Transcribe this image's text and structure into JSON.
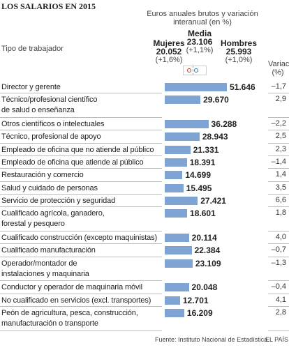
{
  "chart_data": {
    "type": "bar",
    "orientation": "horizontal",
    "title": "LOS SALARIOS EN 2015",
    "subtitle": "Euros anuales brutos y variación interanual (en %)",
    "category_header": "Tipo de trabajador",
    "change_header": "Variac. (%)",
    "color": "#7fa3d3",
    "references": [
      {
        "name": "Mujeres",
        "value": 20052,
        "value_label": "20.052",
        "change": 1.6,
        "change_label": "(+1,6%)",
        "color": "#c0392b"
      },
      {
        "name": "Media",
        "value": 23106,
        "value_label": "23.106",
        "change": 1.1,
        "change_label": "(+1,1%)",
        "color": "#999999"
      },
      {
        "name": "Hombres",
        "value": 25993,
        "value_label": "25.993",
        "change": 1.0,
        "change_label": "(+1,0%)",
        "color": "#2a7ab0"
      }
    ],
    "categories": [
      "Director y gerente",
      "Técnico/profesional científico\nde salud o enseñanza",
      "Otros científicos o intelectuales",
      "Técnico, profesional de apoyo",
      "Empleado de oficina que no atiende al público",
      "Empleado de oficina que atiende al público",
      "Restauración y comercio",
      "Salud y cuidado de personas",
      "Servicio de protección y seguridad",
      "Cualificado agrícola, ganadero,\nforestal y pesquero",
      "Cualificado construcción (excepto maquinistas)",
      "Cualificado manufacturación",
      "Operador/montador de\ninstalaciones y maquinaria",
      "Conductor y operador de maquinaria móvil",
      "No cualificado en servicios (excl. transportes)",
      "Peón de agricultura, pesca, construcción,\nmanufacturación o transporte"
    ],
    "values": [
      51646,
      29670,
      36288,
      28943,
      21331,
      18391,
      14699,
      15495,
      27421,
      18601,
      20114,
      22384,
      23109,
      20048,
      12701,
      16209
    ],
    "value_labels": [
      "51.646",
      "29.670",
      "36.288",
      "28.943",
      "21.331",
      "18.391",
      "14.699",
      "15.495",
      "27.421",
      "18.601",
      "20.114",
      "22.384",
      "23.109",
      "20.048",
      "12.701",
      "16.209"
    ],
    "changes": [
      -1.7,
      2.9,
      -2.2,
      2.5,
      2.3,
      -1.4,
      1.4,
      3.5,
      6.6,
      1.8,
      4.0,
      -0.7,
      -1.3,
      -0.4,
      4.1,
      2.8
    ],
    "change_labels": [
      "–1,7",
      "2,9",
      "–2,2",
      "2,5",
      "2,3",
      "–1,4",
      "1,4",
      "3,5",
      "6,6",
      "1,8",
      "4,0",
      "–0,7",
      "–1,3",
      "–0,4",
      "4,1",
      "2,8"
    ],
    "source": "Fuente: Instituto Nacional de Estadística.",
    "credit": "EL PAÍS"
  }
}
